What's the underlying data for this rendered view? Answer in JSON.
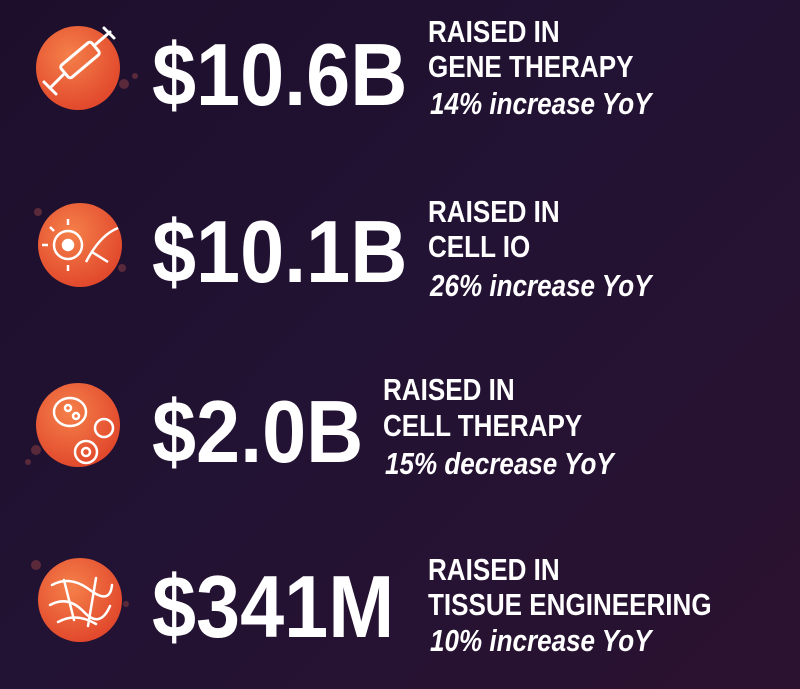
{
  "items": [
    {
      "amount": "$10.6B",
      "line1": "RAISED IN",
      "line2": "GENE THERAPY",
      "change": "14% increase YoY"
    },
    {
      "amount": "$10.1B",
      "line1": "RAISED IN",
      "line2": "CELL IO",
      "change": "26% increase YoY"
    },
    {
      "amount": "$2.0B",
      "line1": "RAISED IN",
      "line2": "CELL THERAPY",
      "change": "15% decrease YoY"
    },
    {
      "amount": "$341M",
      "line1": "RAISED IN",
      "line2": "TISSUE ENGINEERING",
      "change": "10% increase YoY"
    }
  ]
}
